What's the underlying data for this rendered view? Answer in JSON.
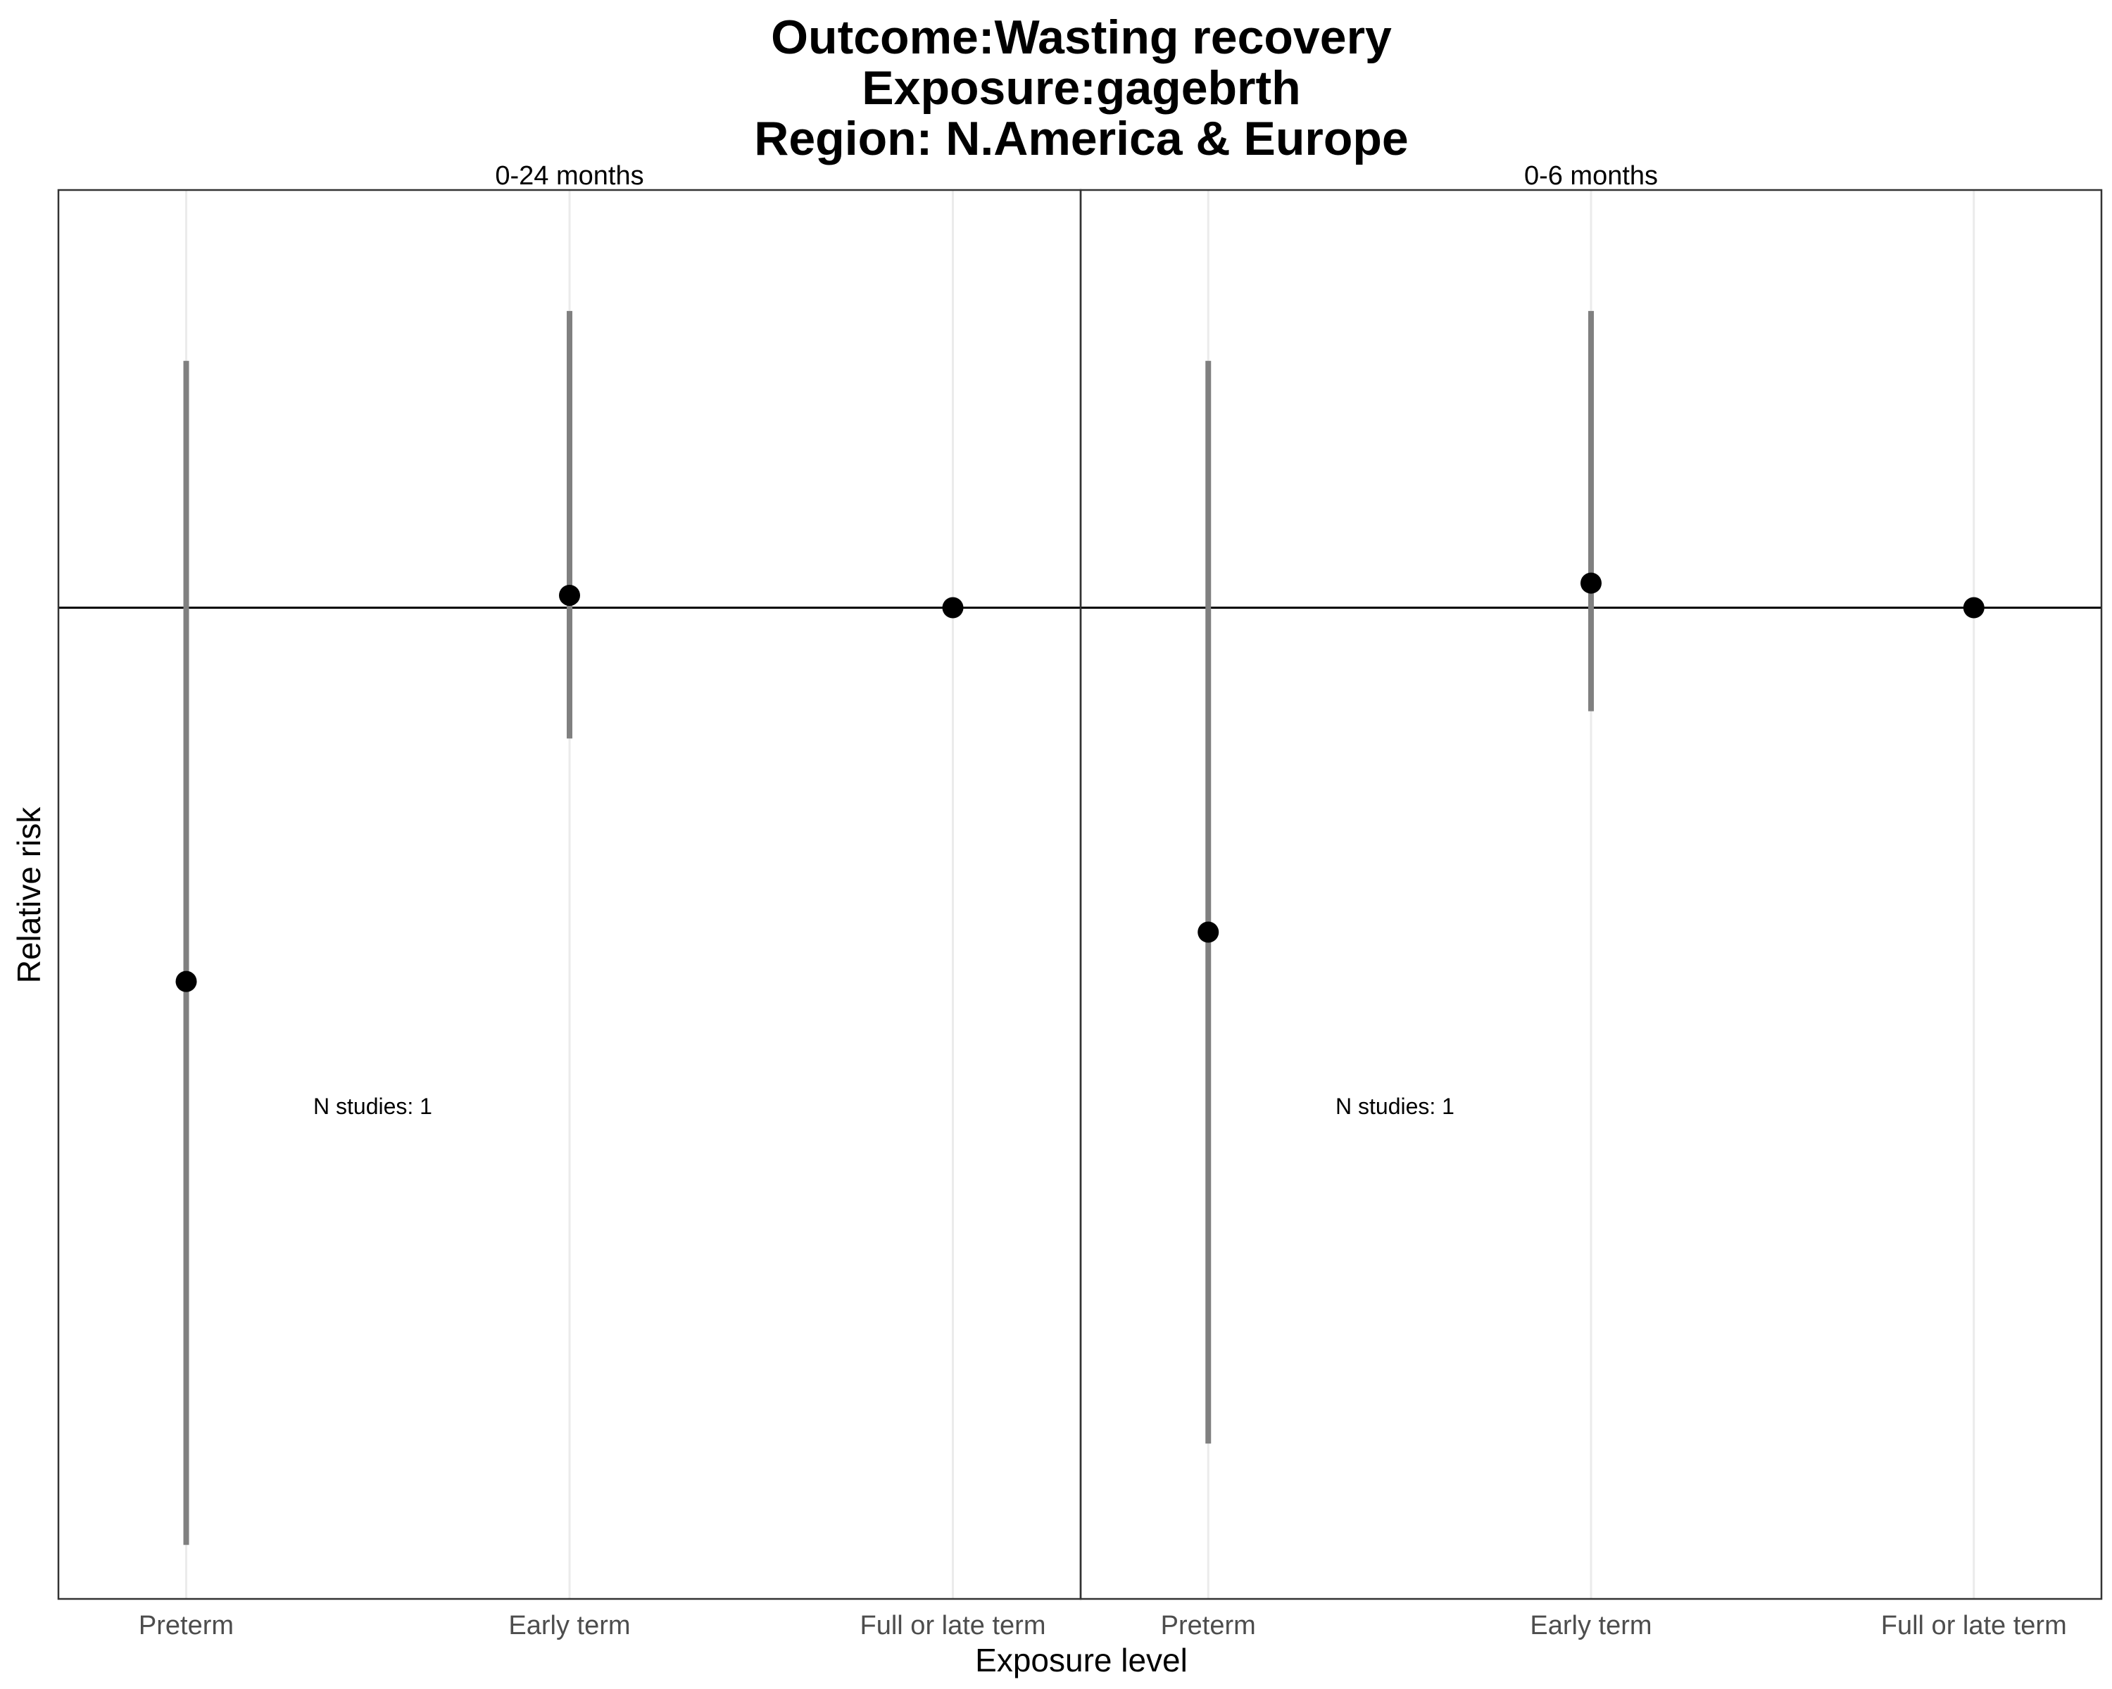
{
  "chart_data": {
    "type": "scatter",
    "title_lines": [
      "Outcome:Wasting recovery",
      "Exposure:gagebrth",
      "Region: N.America & Europe"
    ],
    "xlabel": "Exposure level",
    "ylabel": "Relative risk",
    "categories": [
      "Preterm",
      "Early term",
      "Full or late term"
    ],
    "reference_line": 1.0,
    "y_scale": "log",
    "ylim": [
      0.45,
      1.4
    ],
    "grid": "vertical major lines only",
    "panels": [
      {
        "label": "0-24 months",
        "annotation": "N studies: 1",
        "points": [
          {
            "x": "Preterm",
            "rr": 0.74,
            "lower": 0.47,
            "upper": 1.22
          },
          {
            "x": "Early term",
            "rr": 1.01,
            "lower": 0.9,
            "upper": 1.27
          },
          {
            "x": "Full or late term",
            "rr": 1.0
          }
        ]
      },
      {
        "label": "0-6 months",
        "annotation": "N studies: 1",
        "points": [
          {
            "x": "Preterm",
            "rr": 0.77,
            "lower": 0.51,
            "upper": 1.22
          },
          {
            "x": "Early term",
            "rr": 1.02,
            "lower": 0.92,
            "upper": 1.27
          },
          {
            "x": "Full or late term",
            "rr": 1.0
          }
        ]
      }
    ],
    "colors": {
      "ci_line": "#808080",
      "point": "#000000",
      "grid": "#ebebeb",
      "panel_border": "#333333"
    }
  }
}
